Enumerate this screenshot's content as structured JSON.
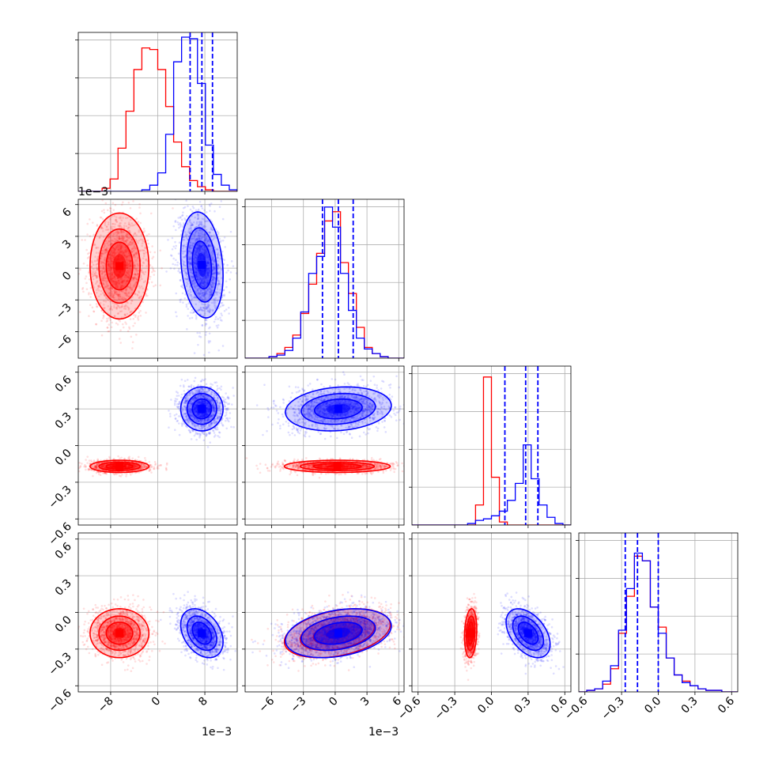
{
  "chart_data": {
    "type": "corner",
    "n_params": 4,
    "ranges": [
      [
        -0.0135,
        0.0135
      ],
      [
        -0.0085,
        0.0065
      ],
      [
        -0.65,
        0.65
      ],
      [
        -0.65,
        0.65
      ]
    ],
    "ticks": [
      [
        -0.008,
        0,
        0.008
      ],
      [
        -0.006,
        -0.003,
        0,
        0.003,
        0.006
      ],
      [
        -0.6,
        -0.3,
        0.0,
        0.3,
        0.6
      ],
      [
        -0.6,
        -0.3,
        0.0,
        0.3,
        0.6
      ]
    ],
    "tick_labels": [
      [
        "−8",
        "0",
        "8"
      ],
      [
        "−6",
        "−3",
        "0",
        "3",
        "6"
      ],
      [
        "−0.6",
        "−0.3",
        "0.0",
        "0.3",
        "0.6"
      ],
      [
        "−0.6",
        "−0.3",
        "0.0",
        "0.3",
        "0.6"
      ]
    ],
    "offset_labels": [
      "1e−3",
      "1e−3",
      "",
      ""
    ],
    "grid": true,
    "series": [
      {
        "color": "#ff0000",
        "means": [
          -0.0065,
          0.0002,
          -0.17,
          -0.17
        ],
        "sds": [
          0.0025,
          0.0025,
          0.025,
          0.1
        ],
        "corr": [
          [
            1,
            0,
            0,
            0
          ],
          [
            0,
            1,
            0,
            0.35
          ],
          [
            0,
            0,
            1,
            0.15
          ],
          [
            0,
            0.35,
            0.15,
            1
          ]
        ],
        "histograms": [
          [
            0,
            0,
            0,
            0.02,
            0.08,
            0.28,
            0.52,
            0.79,
            0.93,
            0.92,
            0.79,
            0.55,
            0.32,
            0.16,
            0.07,
            0.03,
            0.01,
            0,
            0,
            0
          ],
          [
            0,
            0,
            0,
            0.01,
            0.03,
            0.07,
            0.15,
            0.29,
            0.48,
            0.68,
            0.89,
            0.95,
            0.62,
            0.42,
            0.2,
            0.07,
            0.03,
            0.01,
            0,
            0
          ],
          [
            0,
            0,
            0,
            0,
            0,
            0,
            0,
            0,
            0.13,
            0.96,
            0.31,
            0.02,
            0,
            0,
            0,
            0,
            0,
            0,
            0,
            0
          ],
          [
            0,
            0.01,
            0.02,
            0.05,
            0.15,
            0.38,
            0.62,
            0.88,
            0.85,
            0.55,
            0.42,
            0.22,
            0.11,
            0.07,
            0.04,
            0.02,
            0.01,
            0.01,
            0,
            0
          ]
        ]
      },
      {
        "color": "#0000ff",
        "means": [
          0.0075,
          0.0003,
          0.3,
          -0.17
        ],
        "sds": [
          0.0018,
          0.0025,
          0.09,
          0.1
        ],
        "corr": [
          [
            1,
            -0.2,
            0,
            -0.35
          ],
          [
            -0.2,
            1,
            0.15,
            0.3
          ],
          [
            0,
            0.15,
            1,
            -0.45
          ],
          [
            -0.35,
            0.3,
            -0.45,
            1
          ]
        ],
        "histograms": [
          [
            0,
            0,
            0,
            0,
            0,
            0,
            0,
            0,
            0.01,
            0.04,
            0.12,
            0.37,
            0.84,
            1.0,
            0.99,
            0.7,
            0.3,
            0.11,
            0.04,
            0.01
          ],
          [
            0,
            0,
            0,
            0.01,
            0.02,
            0.05,
            0.13,
            0.3,
            0.55,
            0.66,
            0.98,
            0.85,
            0.55,
            0.31,
            0.13,
            0.06,
            0.03,
            0.01,
            0,
            0
          ],
          [
            0,
            0,
            0,
            0,
            0,
            0,
            0,
            0.01,
            0.03,
            0.04,
            0.06,
            0.09,
            0.16,
            0.27,
            0.52,
            0.3,
            0.13,
            0.05,
            0.01,
            0
          ],
          [
            0,
            0.01,
            0.02,
            0.07,
            0.17,
            0.4,
            0.67,
            0.9,
            0.85,
            0.55,
            0.38,
            0.22,
            0.11,
            0.06,
            0.04,
            0.02,
            0.01,
            0.01,
            0,
            0
          ]
        ]
      }
    ],
    "quantiles": {
      "color": "#0000ff",
      "style": "dashed",
      "values": [
        [
          0.0055,
          0.0075,
          0.0093
        ],
        [
          -0.0012,
          0.0003,
          0.0017
        ],
        [
          0.11,
          0.28,
          0.38
        ],
        [
          -0.27,
          -0.17,
          0.0
        ]
      ]
    }
  }
}
